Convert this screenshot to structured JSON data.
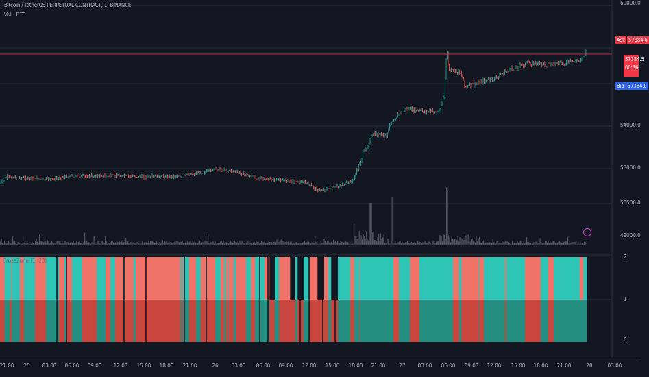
{
  "header": {
    "symbol_title": "Bitcoin / TetherUS PERPETUAL CONTRACT, 1, BINANCE",
    "volume_label": "Vol · BTC"
  },
  "indicator": {
    "label": "CrossZone (1, 20)"
  },
  "price_axis": {
    "ticks": [
      "60000.0",
      "54000.0",
      "53000.0",
      "50500.0",
      "49000.0"
    ]
  },
  "indicator_axis": {
    "ticks": [
      "2",
      "1",
      "0"
    ]
  },
  "price_tags": {
    "ask_label": "Ask",
    "ask_value": "57384.6",
    "last_value": "57384.5",
    "countdown": "00:36",
    "bid_label": "Bid",
    "bid_value": "57384.0"
  },
  "time_axis": {
    "ticks": [
      "21:00",
      "25",
      "03:00",
      "06:00",
      "09:00",
      "12:00",
      "15:00",
      "18:00",
      "21:00",
      "26",
      "03:00",
      "06:00",
      "09:00",
      "12:00",
      "15:00",
      "18:00",
      "21:00",
      "27",
      "03:00",
      "06:00",
      "09:00",
      "12:00",
      "15:00",
      "18:00",
      "21:00",
      "28",
      "03:00"
    ]
  },
  "colors": {
    "background": "#131722",
    "grid": "#2a2e39",
    "up": "#26a69a",
    "down": "#ef5350",
    "teal_top": "#2ec4b6",
    "salmon": "#f0736a",
    "teal_bottom": "#248f80",
    "red_bottom": "#c9463f",
    "ask_tag": "#f23645",
    "bid_tag": "#2962ff",
    "price_line": "#f23645",
    "volume": "#6b6f78"
  }
}
